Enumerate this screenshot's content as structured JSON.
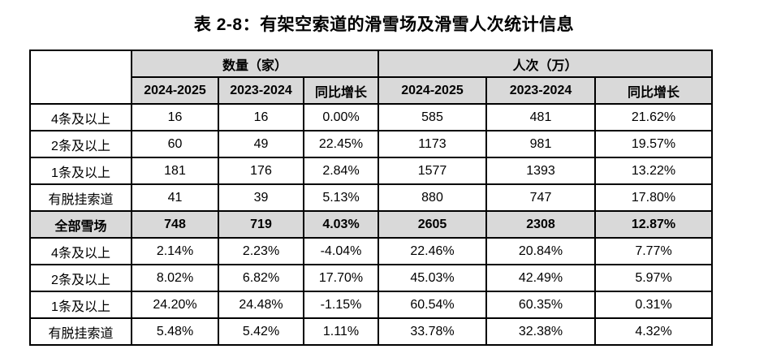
{
  "title": "表 2-8：有架空索道的滑雪场及滑雪人次统计信息",
  "table": {
    "group_headers": [
      {
        "label": "数量（家）"
      },
      {
        "label": "人次（万）"
      }
    ],
    "column_headers": [
      "2024-2025",
      "2023-2024",
      "同比增长",
      "2024-2025",
      "2023-2024",
      "同比增长"
    ],
    "rows": [
      {
        "label": "4条及以上",
        "values": [
          "16",
          "16",
          "0.00%",
          "585",
          "481",
          "21.62%"
        ],
        "emphasis": false
      },
      {
        "label": "2条及以上",
        "values": [
          "60",
          "49",
          "22.45%",
          "1173",
          "981",
          "19.57%"
        ],
        "emphasis": false
      },
      {
        "label": "1条及以上",
        "values": [
          "181",
          "176",
          "2.84%",
          "1577",
          "1393",
          "13.22%"
        ],
        "emphasis": false
      },
      {
        "label": "有脱挂索道",
        "values": [
          "41",
          "39",
          "5.13%",
          "880",
          "747",
          "17.80%"
        ],
        "emphasis": false
      },
      {
        "label": "全部雪场",
        "values": [
          "748",
          "719",
          "4.03%",
          "2605",
          "2308",
          "12.87%"
        ],
        "emphasis": true
      },
      {
        "label": "4条及以上",
        "values": [
          "2.14%",
          "2.23%",
          "-4.04%",
          "22.46%",
          "20.84%",
          "7.77%"
        ],
        "emphasis": false
      },
      {
        "label": "2条及以上",
        "values": [
          "8.02%",
          "6.82%",
          "17.70%",
          "45.03%",
          "42.49%",
          "5.97%"
        ],
        "emphasis": false
      },
      {
        "label": "1条及以上",
        "values": [
          "24.20%",
          "24.48%",
          "-1.15%",
          "60.54%",
          "60.35%",
          "0.31%"
        ],
        "emphasis": false
      },
      {
        "label": "有脱挂索道",
        "values": [
          "5.48%",
          "5.42%",
          "1.11%",
          "33.78%",
          "32.38%",
          "4.32%"
        ],
        "emphasis": false
      }
    ]
  },
  "colors": {
    "header_bg": "#d9d9d9",
    "border": "#000000",
    "text": "#000000",
    "background": "#ffffff"
  }
}
